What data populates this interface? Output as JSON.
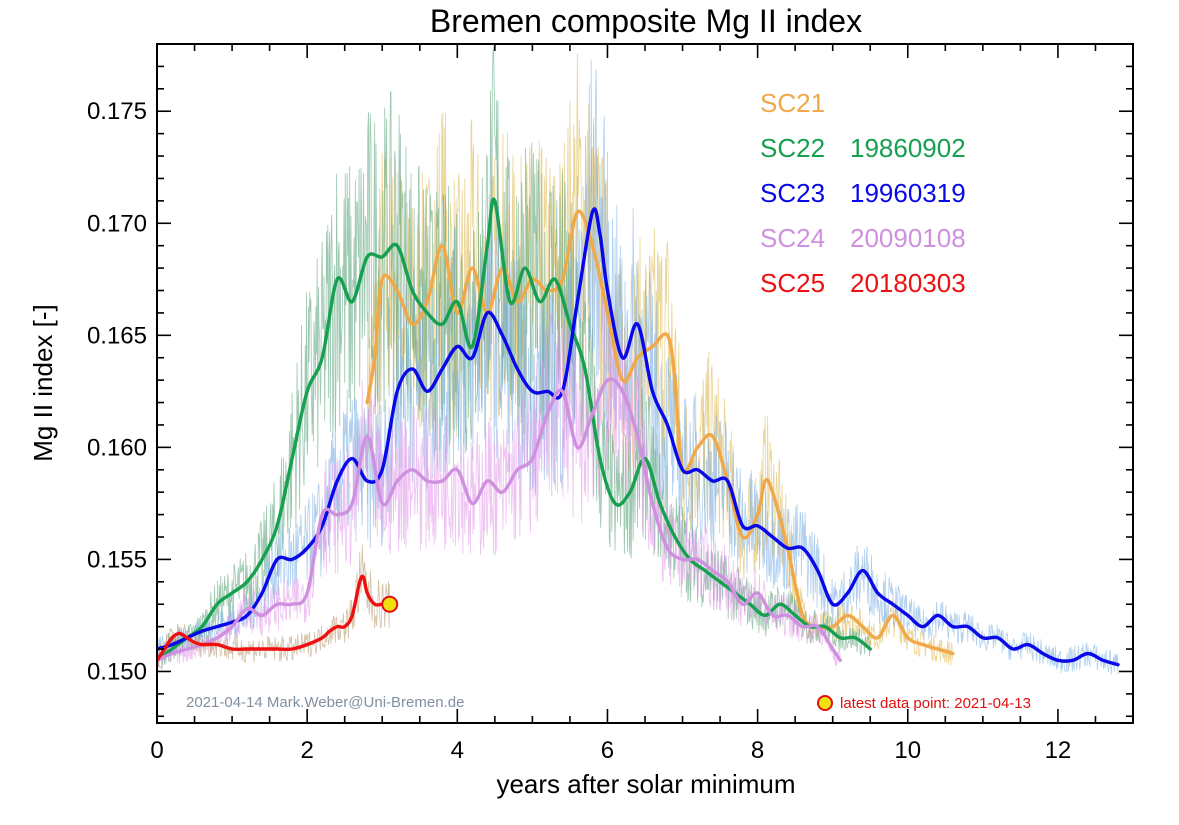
{
  "chart_data": {
    "type": "line",
    "title": "Bremen composite Mg II index",
    "xlabel": "years after solar minimum",
    "ylabel": "Mg II index [-]",
    "xlim": [
      0,
      13
    ],
    "ylim": [
      0.1477,
      0.178
    ],
    "x_ticks": [
      0,
      2,
      4,
      6,
      8,
      10,
      12
    ],
    "x_tick_labels": [
      "0",
      "2",
      "4",
      "6",
      "8",
      "10",
      "12"
    ],
    "y_ticks": [
      0.15,
      0.155,
      0.16,
      0.165,
      0.17,
      0.175
    ],
    "y_tick_labels": [
      "0.150",
      "0.155",
      "0.160",
      "0.165",
      "0.170",
      "0.175"
    ],
    "grid": false,
    "legend_position": "top-right",
    "series": [
      {
        "name": "SC21",
        "date": "",
        "color": "#f0a848",
        "raw_color": "#d8b040",
        "x": [
          2.8,
          2.9,
          3.0,
          3.2,
          3.4,
          3.6,
          3.8,
          4.0,
          4.2,
          4.4,
          4.6,
          4.8,
          5.0,
          5.2,
          5.4,
          5.6,
          5.8,
          6.0,
          6.2,
          6.4,
          6.6,
          6.8,
          6.9,
          7.0,
          7.2,
          7.4,
          7.6,
          7.8,
          8.0,
          8.1,
          8.2,
          8.4,
          8.6,
          8.8,
          9.0,
          9.2,
          9.4,
          9.6,
          9.8,
          10.0,
          10.2,
          10.4,
          10.6
        ],
        "values": [
          0.162,
          0.164,
          0.1675,
          0.167,
          0.1655,
          0.1665,
          0.169,
          0.166,
          0.168,
          0.166,
          0.168,
          0.1665,
          0.1675,
          0.167,
          0.1675,
          0.1705,
          0.169,
          0.166,
          0.163,
          0.164,
          0.1645,
          0.165,
          0.163,
          0.159,
          0.16,
          0.1605,
          0.1585,
          0.156,
          0.157,
          0.1585,
          0.158,
          0.1555,
          0.1525,
          0.152,
          0.152,
          0.1525,
          0.152,
          0.1515,
          0.1525,
          0.1515,
          0.1512,
          0.151,
          0.1508
        ]
      },
      {
        "name": "SC22",
        "date": "19860902",
        "color": "#16a050",
        "raw_color": "#4a9a70",
        "x": [
          0.0,
          0.2,
          0.4,
          0.6,
          0.8,
          1.0,
          1.2,
          1.4,
          1.6,
          1.8,
          2.0,
          2.2,
          2.4,
          2.6,
          2.8,
          3.0,
          3.2,
          3.4,
          3.6,
          3.8,
          4.0,
          4.2,
          4.4,
          4.5,
          4.7,
          4.9,
          5.1,
          5.3,
          5.5,
          5.7,
          5.9,
          6.1,
          6.3,
          6.5,
          6.7,
          6.9,
          7.1,
          7.3,
          7.5,
          7.7,
          7.9,
          8.1,
          8.3,
          8.5,
          8.7,
          8.9,
          9.1,
          9.3,
          9.5
        ],
        "values": [
          0.1505,
          0.151,
          0.1515,
          0.152,
          0.153,
          0.1535,
          0.154,
          0.155,
          0.1565,
          0.1595,
          0.1625,
          0.164,
          0.1675,
          0.1665,
          0.1685,
          0.1685,
          0.169,
          0.167,
          0.166,
          0.1655,
          0.1665,
          0.1645,
          0.169,
          0.171,
          0.1665,
          0.168,
          0.1665,
          0.1675,
          0.1655,
          0.1635,
          0.1595,
          0.1575,
          0.158,
          0.1595,
          0.1575,
          0.156,
          0.155,
          0.1545,
          0.154,
          0.1535,
          0.153,
          0.1525,
          0.153,
          0.1525,
          0.152,
          0.152,
          0.1515,
          0.1515,
          0.151
        ]
      },
      {
        "name": "SC23",
        "date": "19960319",
        "color": "#0808e8",
        "raw_color": "#70a8e0",
        "x": [
          0.0,
          0.2,
          0.4,
          0.6,
          0.8,
          1.0,
          1.2,
          1.4,
          1.6,
          1.8,
          2.0,
          2.2,
          2.4,
          2.6,
          2.8,
          3.0,
          3.2,
          3.4,
          3.6,
          3.8,
          4.0,
          4.2,
          4.4,
          4.6,
          4.8,
          5.0,
          5.2,
          5.4,
          5.6,
          5.8,
          5.9,
          6.0,
          6.2,
          6.4,
          6.6,
          6.8,
          7.0,
          7.2,
          7.4,
          7.6,
          7.8,
          8.0,
          8.2,
          8.4,
          8.6,
          8.8,
          9.0,
          9.2,
          9.4,
          9.6,
          9.8,
          10.0,
          10.2,
          10.4,
          10.6,
          10.8,
          11.0,
          11.2,
          11.4,
          11.6,
          11.8,
          12.0,
          12.2,
          12.4,
          12.6,
          12.8
        ],
        "values": [
          0.151,
          0.1512,
          0.1515,
          0.1518,
          0.152,
          0.1522,
          0.1525,
          0.1535,
          0.155,
          0.155,
          0.1555,
          0.1565,
          0.1585,
          0.1595,
          0.1585,
          0.159,
          0.1625,
          0.1635,
          0.1625,
          0.1635,
          0.1645,
          0.164,
          0.166,
          0.165,
          0.1635,
          0.1625,
          0.1625,
          0.1625,
          0.1665,
          0.1705,
          0.1695,
          0.167,
          0.164,
          0.1655,
          0.1625,
          0.161,
          0.159,
          0.159,
          0.1585,
          0.1585,
          0.1565,
          0.1565,
          0.156,
          0.1555,
          0.1555,
          0.1545,
          0.153,
          0.1535,
          0.1545,
          0.1535,
          0.153,
          0.1525,
          0.152,
          0.1525,
          0.152,
          0.152,
          0.1515,
          0.1515,
          0.151,
          0.1512,
          0.1508,
          0.1505,
          0.1505,
          0.1508,
          0.1505,
          0.1503
        ]
      },
      {
        "name": "SC24",
        "date": "20090108",
        "color": "#d090e0",
        "raw_color": "#e090e8",
        "x": [
          0.0,
          0.2,
          0.4,
          0.6,
          0.8,
          1.0,
          1.2,
          1.4,
          1.6,
          1.8,
          2.0,
          2.2,
          2.4,
          2.6,
          2.8,
          3.0,
          3.2,
          3.4,
          3.6,
          3.8,
          4.0,
          4.2,
          4.4,
          4.6,
          4.8,
          5.0,
          5.2,
          5.4,
          5.6,
          5.8,
          6.0,
          6.2,
          6.4,
          6.6,
          6.8,
          7.0,
          7.2,
          7.4,
          7.6,
          7.8,
          8.0,
          8.2,
          8.4,
          8.6,
          8.8,
          9.0,
          9.1
        ],
        "values": [
          0.1505,
          0.1508,
          0.151,
          0.1512,
          0.1515,
          0.152,
          0.1528,
          0.1525,
          0.153,
          0.153,
          0.1535,
          0.157,
          0.157,
          0.1575,
          0.1605,
          0.1575,
          0.1585,
          0.159,
          0.1585,
          0.1585,
          0.159,
          0.1575,
          0.1585,
          0.158,
          0.159,
          0.1595,
          0.1615,
          0.1625,
          0.16,
          0.1615,
          0.163,
          0.1625,
          0.1605,
          0.1575,
          0.1555,
          0.155,
          0.155,
          0.1545,
          0.154,
          0.153,
          0.1535,
          0.1525,
          0.1525,
          0.152,
          0.152,
          0.151,
          0.1505
        ]
      },
      {
        "name": "SC25",
        "date": "20180303",
        "color": "#ee1010",
        "raw_color": "#b09060",
        "x": [
          0.0,
          0.1,
          0.2,
          0.3,
          0.4,
          0.5,
          0.6,
          0.8,
          1.0,
          1.2,
          1.4,
          1.6,
          1.8,
          2.0,
          2.2,
          2.3,
          2.4,
          2.5,
          2.6,
          2.7,
          2.75,
          2.8,
          2.9,
          3.0,
          3.1
        ],
        "values": [
          0.1505,
          0.151,
          0.1515,
          0.1517,
          0.1515,
          0.1513,
          0.1512,
          0.1512,
          0.151,
          0.151,
          0.151,
          0.151,
          0.151,
          0.1512,
          0.1515,
          0.1518,
          0.152,
          0.152,
          0.1525,
          0.154,
          0.1542,
          0.1535,
          0.153,
          0.153,
          0.153
        ]
      }
    ],
    "latest_point": {
      "x": 3.1,
      "y": 0.153,
      "label": "latest data point: 2021-04-13",
      "fill": "#f0e010",
      "stroke": "#e01010"
    },
    "footer_note": "2021-04-14  Mark.Weber@Uni-Bremen.de",
    "footer_color": "#8090a0"
  }
}
